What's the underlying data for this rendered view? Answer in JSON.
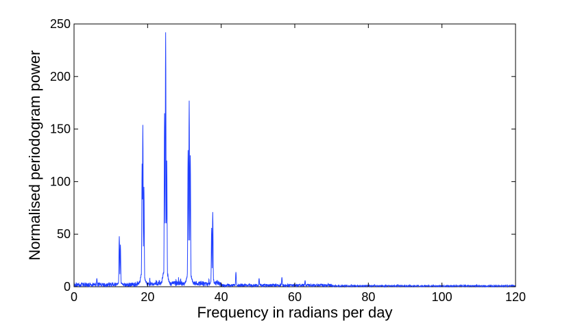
{
  "chart_data": {
    "type": "line",
    "title": "",
    "xlabel": "Frequency in radians per day",
    "ylabel": "Normalised periodogram power",
    "xlim": [
      0,
      120
    ],
    "ylim": [
      0,
      250
    ],
    "xticks": [
      0,
      20,
      40,
      60,
      80,
      100,
      120
    ],
    "yticks": [
      0,
      50,
      100,
      150,
      200,
      250
    ],
    "grid": false,
    "legend": "none",
    "series_color": "#1f3fff",
    "series": [
      {
        "peaks": [
          {
            "x": 6.2,
            "y": 8
          },
          {
            "x": 12.3,
            "y": 48
          },
          {
            "x": 12.6,
            "y": 40
          },
          {
            "x": 18.5,
            "y": 117
          },
          {
            "x": 18.7,
            "y": 154
          },
          {
            "x": 19.0,
            "y": 95
          },
          {
            "x": 24.6,
            "y": 165
          },
          {
            "x": 24.9,
            "y": 242
          },
          {
            "x": 25.2,
            "y": 120
          },
          {
            "x": 31.0,
            "y": 130
          },
          {
            "x": 31.3,
            "y": 177
          },
          {
            "x": 31.6,
            "y": 125
          },
          {
            "x": 37.4,
            "y": 56
          },
          {
            "x": 37.7,
            "y": 71
          },
          {
            "x": 44.0,
            "y": 14
          },
          {
            "x": 50.3,
            "y": 8
          },
          {
            "x": 56.5,
            "y": 9
          },
          {
            "x": 62.8,
            "y": 6
          },
          {
            "x": 69.1,
            "y": 3
          },
          {
            "x": 75.4,
            "y": 2
          },
          {
            "x": 81.7,
            "y": 2
          },
          {
            "x": 88.0,
            "y": 2
          }
        ],
        "baseline_noise_max": 3
      }
    ]
  }
}
